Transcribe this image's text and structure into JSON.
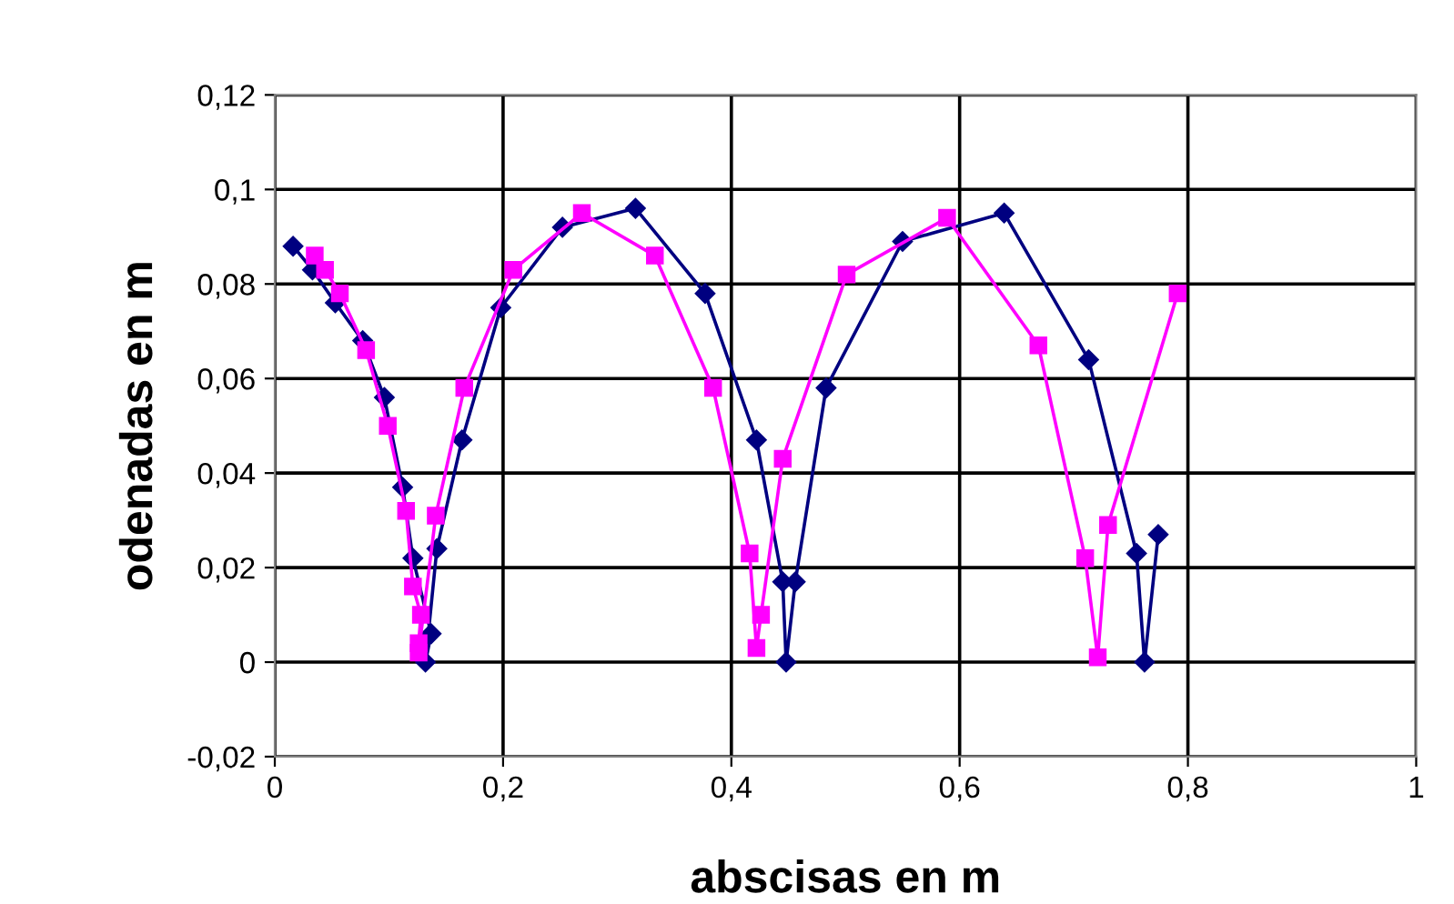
{
  "chart_data": {
    "type": "line",
    "xlabel": "abscisas en m",
    "ylabel": "odenadas en m",
    "xlim": [
      0,
      1
    ],
    "ylim": [
      -0.02,
      0.12
    ],
    "xticks": [
      0,
      {
        "value": 0.2,
        "label": "0,2"
      },
      {
        "value": 0.4,
        "label": "0,4"
      },
      {
        "value": 0.6,
        "label": "0,6"
      },
      {
        "value": 0.8,
        "label": "0,8"
      },
      1
    ],
    "yticks": [
      {
        "value": -0.02,
        "label": "-0,02"
      },
      0,
      {
        "value": 0.02,
        "label": "0,02"
      },
      {
        "value": 0.04,
        "label": "0,04"
      },
      {
        "value": 0.06,
        "label": "0,06"
      },
      {
        "value": 0.08,
        "label": "0,08"
      },
      {
        "value": 0.1,
        "label": "0,1"
      },
      {
        "value": 0.12,
        "label": "0,12"
      }
    ],
    "grid": true,
    "legend": false,
    "series": [
      {
        "color": "#000080",
        "marker": "diamond",
        "x": [
          0.016,
          0.033,
          0.053,
          0.077,
          0.096,
          0.112,
          0.121,
          0.137,
          0.132,
          0.142,
          0.164,
          0.198,
          0.252,
          0.316,
          0.377,
          0.422,
          0.445,
          0.448,
          0.456,
          0.483,
          0.55,
          0.639,
          0.713,
          0.755,
          0.762,
          0.774
        ],
        "values": [
          0.088,
          0.083,
          0.076,
          0.068,
          0.056,
          0.037,
          0.022,
          0.006,
          0,
          0.024,
          0.047,
          0.075,
          0.092,
          0.096,
          0.078,
          0.047,
          0.017,
          0,
          0.017,
          0.058,
          0.089,
          0.095,
          0.064,
          0.023,
          0,
          0.027
        ]
      },
      {
        "color": "#ff00ff",
        "marker": "square",
        "x": [
          0.035,
          0.044,
          0.057,
          0.08,
          0.099,
          0.115,
          0.121,
          0.128,
          0.126,
          0.126,
          0.141,
          0.166,
          0.209,
          0.269,
          0.333,
          0.384,
          0.416,
          0.422,
          0.426,
          0.445,
          0.501,
          0.589,
          0.669,
          0.71,
          0.721,
          0.73,
          0.791
        ],
        "values": [
          0.086,
          0.083,
          0.078,
          0.066,
          0.05,
          0.032,
          0.016,
          0.01,
          0.004,
          0.002,
          0.031,
          0.058,
          0.083,
          0.095,
          0.086,
          0.058,
          0.023,
          0.003,
          0.01,
          0.043,
          0.082,
          0.094,
          0.067,
          0.022,
          0.001,
          0.029,
          0.078
        ]
      }
    ]
  }
}
